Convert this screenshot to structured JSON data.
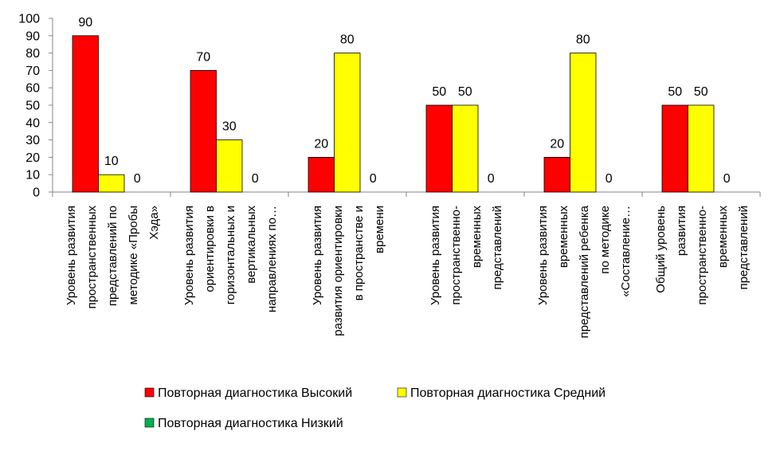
{
  "chart_data": {
    "type": "bar",
    "categories": [
      [
        "Уровень развития",
        "пространственных",
        "представлений по",
        "методике «Пробы",
        "Хэда»"
      ],
      [
        "Уровень развития",
        "ориентировки в",
        "горизонтальных и",
        "вертикальных",
        "направлениях по…"
      ],
      [
        "Уровень развития",
        "развития ориентировки",
        "в пространстве и",
        "времени"
      ],
      [
        "Уровень развития",
        "пространственно-",
        "временных",
        "представлений"
      ],
      [
        "Уровень развития",
        "временных",
        "представлений ребенка",
        "по методике",
        "«Составление…"
      ],
      [
        "Общий уровень",
        "развития",
        "пространственно-",
        "временных",
        "представлений"
      ]
    ],
    "series": [
      {
        "name": "Повторная диагностика Высокий",
        "color": "#ff0000",
        "values": [
          90,
          70,
          20,
          50,
          20,
          50
        ]
      },
      {
        "name": "Повторная диагностика Средний",
        "color": "#ffff00",
        "values": [
          10,
          30,
          80,
          50,
          80,
          50
        ]
      },
      {
        "name": "Повторная диагностика Низкий",
        "color": "#00b050",
        "values": [
          0,
          0,
          0,
          0,
          0,
          0
        ]
      }
    ],
    "ylim": [
      0,
      100
    ],
    "yticks": [
      0,
      10,
      20,
      30,
      40,
      50,
      60,
      70,
      80,
      90,
      100
    ],
    "grid": false,
    "legend_position": "bottom"
  }
}
